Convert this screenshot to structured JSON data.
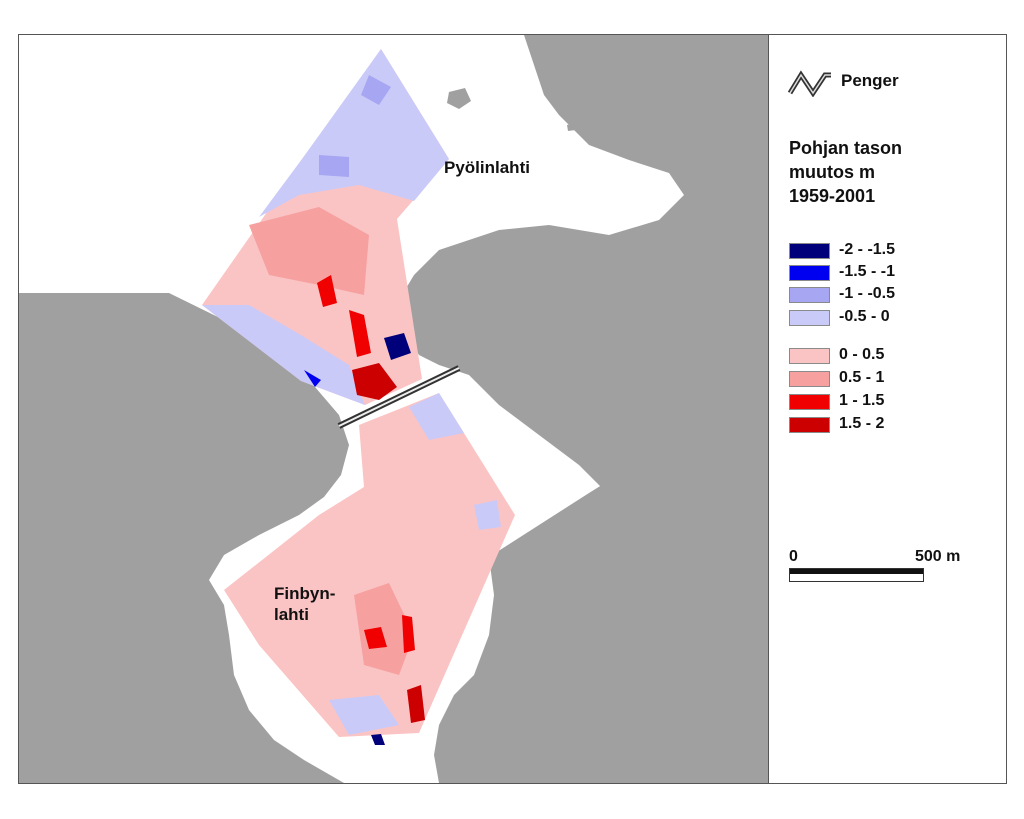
{
  "places": {
    "north": "Pyölinlahti",
    "south_line1": "Finbyn-",
    "south_line2": "lahti"
  },
  "legend": {
    "embankment_label": "Penger",
    "title_line1": "Pohjan tason",
    "title_line2": "muutos m",
    "title_line3": "1959-2001",
    "classes": [
      {
        "label": "-2 - -1.5",
        "color": "#00007a"
      },
      {
        "label": "-1.5 - -1",
        "color": "#0000f0"
      },
      {
        "label": "-1 - -0.5",
        "color": "#a6a6f2"
      },
      {
        "label": "-0.5 - 0",
        "color": "#cacaf8"
      },
      {
        "label": "0 - 0.5",
        "color": "#fbc4c4"
      },
      {
        "label": "0.5 - 1",
        "color": "#f6a0a0"
      },
      {
        "label": "1 - 1.5",
        "color": "#f00000"
      },
      {
        "label": "1.5 - 2",
        "color": "#cc0000"
      }
    ],
    "scale_start": "0",
    "scale_end": "500 m"
  },
  "colors": {
    "land": "#a0a0a0",
    "water": "#ffffff"
  }
}
